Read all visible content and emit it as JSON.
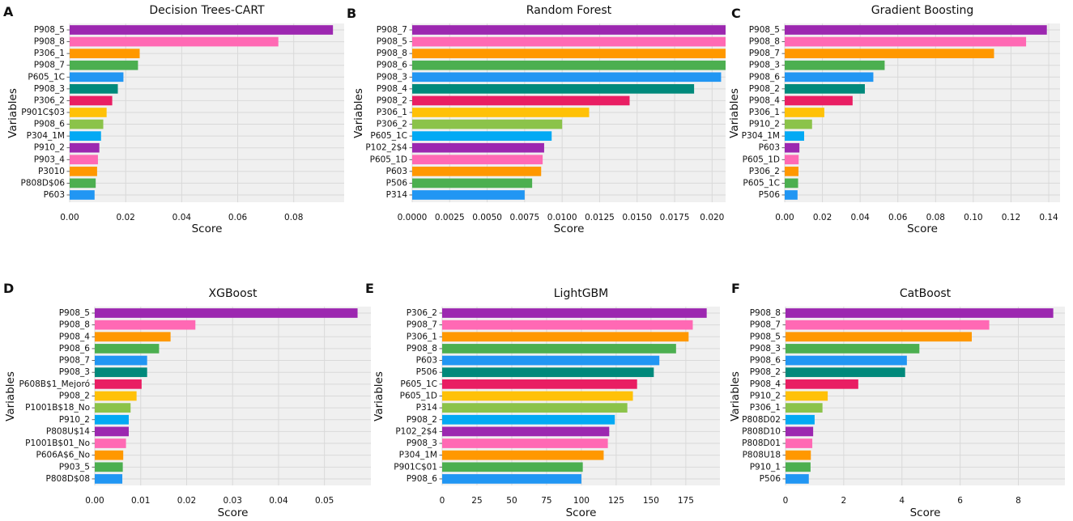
{
  "colors": [
    "#9c27b0",
    "#ff69b4",
    "#ff9800",
    "#4caf50",
    "#2196f3",
    "#00897b",
    "#e91e63",
    "#ffc107",
    "#8bc34a",
    "#03a9f4"
  ],
  "chart_data": [
    {
      "panel_label": "A",
      "type": "bar",
      "title": "Decision Trees-CART",
      "xlabel": "Score",
      "ylabel": "Variables",
      "categories": [
        "P908_5",
        "P908_8",
        "P306_1",
        "P908_7",
        "P605_1C",
        "P908_3",
        "P306_2",
        "P901C$03",
        "P908_6",
        "P304_1M",
        "P910_2",
        "P903_4",
        "P3010",
        "P808D$06",
        "P603"
      ],
      "values": [
        0.094,
        0.0745,
        0.025,
        0.0244,
        0.0192,
        0.0172,
        0.0152,
        0.0132,
        0.012,
        0.0112,
        0.0106,
        0.0101,
        0.0098,
        0.0093,
        0.0089
      ],
      "xlim": [
        0,
        0.098
      ],
      "xticks": [
        0,
        0.02,
        0.04,
        0.06,
        0.08
      ],
      "xtick_labels": [
        "0.00",
        "0.02",
        "0.04",
        "0.06",
        "0.08"
      ]
    },
    {
      "panel_label": "B",
      "type": "bar",
      "title": "Random Forest",
      "xlabel": "Score",
      "ylabel": "Variables",
      "categories": [
        "P908_7",
        "P908_5",
        "P908_8",
        "P908_6",
        "P908_3",
        "P908_4",
        "P908_2",
        "P306_1",
        "P306_2",
        "P605_1C",
        "P102_2$4",
        "P605_1D",
        "P603",
        "P506",
        "P314"
      ],
      "values": [
        0.0209,
        0.0209,
        0.0209,
        0.0209,
        0.0206,
        0.0188,
        0.0145,
        0.0118,
        0.01,
        0.0093,
        0.0088,
        0.0087,
        0.0086,
        0.008,
        0.0075
      ],
      "xlim": [
        0,
        0.0209
      ],
      "xticks": [
        0,
        0.0025,
        0.005,
        0.0075,
        0.01,
        0.0125,
        0.015,
        0.0175,
        0.02
      ],
      "xtick_labels": [
        "0.0000",
        "0.0025",
        "0.0050",
        "0.0075",
        "0.0100",
        "0.0125",
        "0.0150",
        "0.0175",
        "0.020"
      ]
    },
    {
      "panel_label": "C",
      "type": "bar",
      "title": "Gradient Boosting",
      "xlabel": "Score",
      "ylabel": "Variables",
      "categories": [
        "P908_5",
        "P908_8",
        "P908_7",
        "P908_3",
        "P908_6",
        "P908_2",
        "P908_4",
        "P306_1",
        "P910_2",
        "P304_1M",
        "P603",
        "P605_1D",
        "P306_2",
        "P605_1C",
        "P506"
      ],
      "values": [
        0.139,
        0.128,
        0.111,
        0.053,
        0.047,
        0.0425,
        0.036,
        0.021,
        0.0145,
        0.0103,
        0.0078,
        0.0074,
        0.0073,
        0.0071,
        0.0068
      ],
      "xlim": [
        0,
        0.146
      ],
      "xticks": [
        0,
        0.02,
        0.04,
        0.06,
        0.08,
        0.1,
        0.12,
        0.14
      ],
      "xtick_labels": [
        "0.00",
        "0.02",
        "0.04",
        "0.06",
        "0.08",
        "0.10",
        "0.12",
        "0.14"
      ]
    },
    {
      "panel_label": "D",
      "type": "bar",
      "title": "XGBoost",
      "xlabel": "Score",
      "ylabel": "Variables",
      "categories": [
        "P908_5",
        "P908_8",
        "P908_4",
        "P908_6",
        "P908_7",
        "P908_3",
        "P608B$1_Mejoró",
        "P908_2",
        "P1001B$18_No",
        "P910_2",
        "P808U$14",
        "P1001B$01_No",
        "P606A$6_No",
        "P903_5",
        "P808D$08"
      ],
      "values": [
        0.0572,
        0.0219,
        0.0165,
        0.014,
        0.0114,
        0.0114,
        0.0102,
        0.0091,
        0.0078,
        0.0074,
        0.0074,
        0.0068,
        0.0062,
        0.0061,
        0.006
      ],
      "xlim": [
        0,
        0.0601
      ],
      "xticks": [
        0,
        0.01,
        0.02,
        0.03,
        0.04,
        0.05
      ],
      "xtick_labels": [
        "0.00",
        "0.01",
        "0.02",
        "0.03",
        "0.04",
        "0.05"
      ]
    },
    {
      "panel_label": "E",
      "type": "bar",
      "title": "LightGBM",
      "xlabel": "Score",
      "ylabel": "Variables",
      "categories": [
        "P306_2",
        "P908_7",
        "P306_1",
        "P908_8",
        "P603",
        "P506",
        "P605_1C",
        "P605_1D",
        "P314",
        "P908_2",
        "P102_2$4",
        "P908_3",
        "P304_1M",
        "P901C$01",
        "P908_6"
      ],
      "values": [
        190,
        180,
        177,
        168,
        156,
        152,
        140,
        137,
        133,
        124,
        120,
        119,
        116,
        101,
        100
      ],
      "xlim": [
        0,
        199.5
      ],
      "xticks": [
        0,
        25,
        50,
        75,
        100,
        125,
        150,
        175
      ],
      "xtick_labels": [
        "0",
        "25",
        "50",
        "75",
        "100",
        "125",
        "150",
        "175"
      ]
    },
    {
      "panel_label": "F",
      "type": "bar",
      "title": "CatBoost",
      "xlabel": "Score",
      "ylabel": "Variables",
      "categories": [
        "P908_8",
        "P908_7",
        "P908_5",
        "P908_3",
        "P908_6",
        "P908_2",
        "P908_4",
        "P910_2",
        "P306_1",
        "P808D02",
        "P808D10",
        "P808D01",
        "P808U18",
        "P910_1",
        "P506"
      ],
      "values": [
        9.2,
        7.0,
        6.4,
        4.6,
        4.17,
        4.11,
        2.5,
        1.45,
        1.27,
        1.0,
        0.95,
        0.92,
        0.87,
        0.86,
        0.8
      ],
      "xlim": [
        0,
        9.6
      ],
      "xticks": [
        0,
        2,
        4,
        6,
        8
      ],
      "xtick_labels": [
        "0",
        "2",
        "4",
        "6",
        "8"
      ]
    }
  ]
}
